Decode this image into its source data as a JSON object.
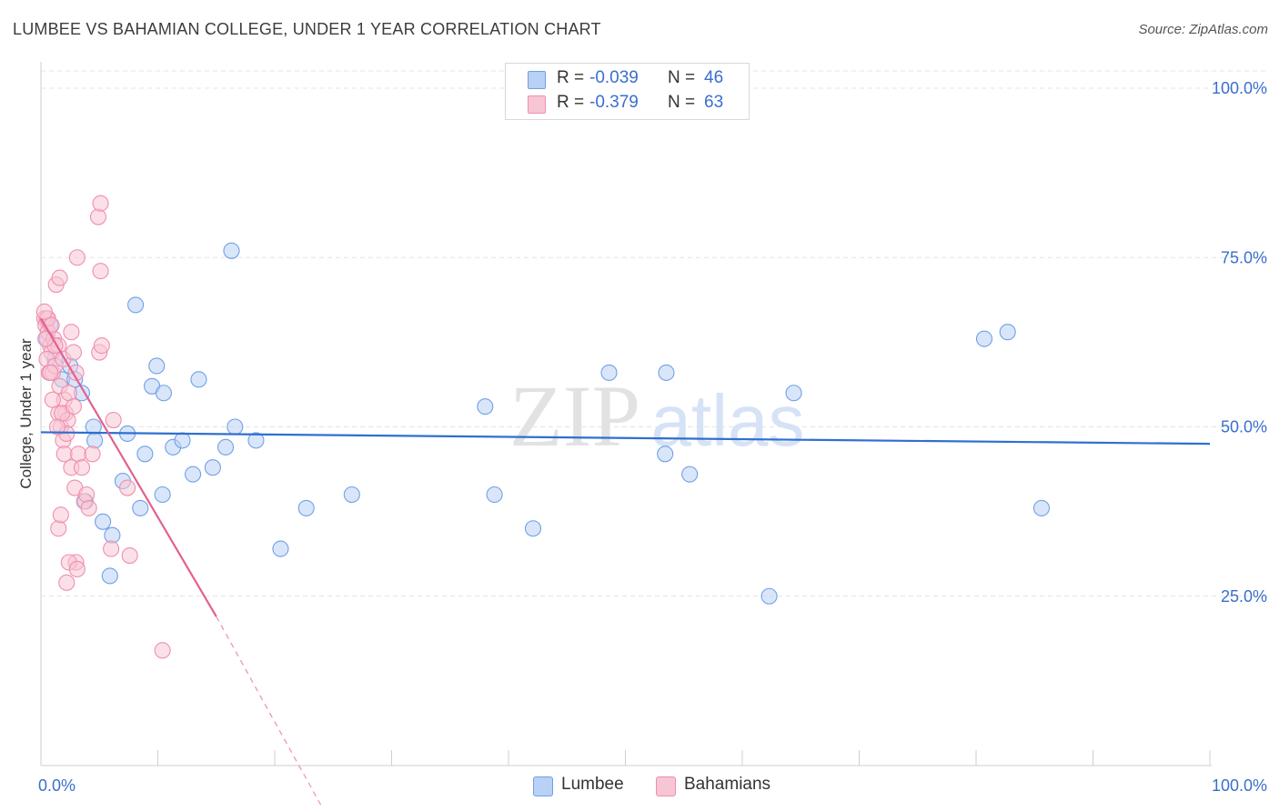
{
  "title": "LUMBEE VS BAHAMIAN COLLEGE, UNDER 1 YEAR CORRELATION CHART",
  "source": "Source: ZipAtlas.com",
  "watermark": {
    "zip": "ZIP",
    "atlas": "atlas"
  },
  "legend_top": [
    {
      "r_label": "R =",
      "r_value": "-0.039",
      "n_label": "N =",
      "n_value": "46",
      "color": "#6fa0e8"
    },
    {
      "r_label": "R =",
      "r_value": "-0.379",
      "n_label": "N =",
      "n_value": "63",
      "color": "#ef8fae"
    }
  ],
  "legend_bottom": [
    "Lumbee",
    "Bahamians"
  ],
  "chart_data": {
    "type": "scatter",
    "title": "LUMBEE VS BAHAMIAN COLLEGE, UNDER 1 YEAR CORRELATION CHART",
    "xlabel": "",
    "ylabel": "College, Under 1 year",
    "xlim": [
      0,
      100
    ],
    "ylim": [
      0,
      105
    ],
    "x_tick_labels": [
      {
        "value": 0,
        "label": "0.0%"
      },
      {
        "value": 100,
        "label": "100.0%"
      }
    ],
    "y_ticks": [
      {
        "value": 25,
        "label": "25.0%"
      },
      {
        "value": 50,
        "label": "50.0%"
      },
      {
        "value": 75,
        "label": "75.0%"
      },
      {
        "value": 100,
        "label": "100.0%"
      }
    ],
    "grid": true,
    "legend_position": "top-center",
    "series": [
      {
        "name": "Lumbee",
        "color": "#6fa0e8",
        "fill": "#b9d1f4",
        "r": -0.039,
        "n": 46,
        "trend": {
          "x": [
            0,
            100
          ],
          "y": [
            49.2,
            47.5
          ],
          "color": "#2f6fd0"
        },
        "points": [
          [
            0.5,
            63
          ],
          [
            0.8,
            65
          ],
          [
            1.2,
            60
          ],
          [
            1.8,
            57
          ],
          [
            2.5,
            59
          ],
          [
            2.9,
            57
          ],
          [
            3.5,
            55
          ],
          [
            4.5,
            50
          ],
          [
            4.6,
            48
          ],
          [
            3.8,
            39
          ],
          [
            5.3,
            36
          ],
          [
            6.1,
            34
          ],
          [
            5.9,
            28
          ],
          [
            7.0,
            42
          ],
          [
            7.4,
            49
          ],
          [
            8.1,
            68
          ],
          [
            8.5,
            38
          ],
          [
            8.9,
            46
          ],
          [
            9.5,
            56
          ],
          [
            9.9,
            59
          ],
          [
            10.5,
            55
          ],
          [
            10.4,
            40
          ],
          [
            11.3,
            47
          ],
          [
            12.1,
            48
          ],
          [
            13.0,
            43
          ],
          [
            13.5,
            57
          ],
          [
            14.7,
            44
          ],
          [
            15.8,
            47
          ],
          [
            16.3,
            76
          ],
          [
            16.6,
            50
          ],
          [
            18.4,
            48
          ],
          [
            20.5,
            32
          ],
          [
            22.7,
            38
          ],
          [
            26.6,
            40
          ],
          [
            38.0,
            53
          ],
          [
            38.8,
            40
          ],
          [
            42.1,
            35
          ],
          [
            48.6,
            58
          ],
          [
            53.5,
            58
          ],
          [
            53.4,
            46
          ],
          [
            55.5,
            43
          ],
          [
            62.3,
            25
          ],
          [
            64.4,
            55
          ],
          [
            80.7,
            63
          ],
          [
            82.7,
            64
          ],
          [
            85.6,
            38
          ]
        ]
      },
      {
        "name": "Bahamians",
        "color": "#ef8fae",
        "fill": "#f7c6d5",
        "r": -0.379,
        "n": 63,
        "trend": {
          "x": [
            0,
            15
          ],
          "y": [
            66.0,
            22.0
          ],
          "dash_to": [
            24,
            -6
          ],
          "color": "#e2618f"
        },
        "points": [
          [
            0.3,
            66
          ],
          [
            0.5,
            66
          ],
          [
            0.4,
            65
          ],
          [
            0.6,
            64
          ],
          [
            0.8,
            62
          ],
          [
            0.9,
            61
          ],
          [
            0.5,
            60
          ],
          [
            0.7,
            58
          ],
          [
            1.0,
            58
          ],
          [
            1.1,
            63
          ],
          [
            1.3,
            71
          ],
          [
            1.6,
            72
          ],
          [
            1.5,
            62
          ],
          [
            1.2,
            59
          ],
          [
            1.6,
            56
          ],
          [
            1.9,
            60
          ],
          [
            2.0,
            54
          ],
          [
            2.1,
            52
          ],
          [
            1.5,
            52
          ],
          [
            1.7,
            50
          ],
          [
            1.9,
            48
          ],
          [
            2.3,
            51
          ],
          [
            2.0,
            46
          ],
          [
            2.4,
            55
          ],
          [
            2.6,
            64
          ],
          [
            2.8,
            61
          ],
          [
            3.0,
            58
          ],
          [
            2.6,
            44
          ],
          [
            2.9,
            41
          ],
          [
            3.2,
            46
          ],
          [
            3.0,
            30
          ],
          [
            2.4,
            30
          ],
          [
            2.2,
            27
          ],
          [
            1.5,
            35
          ],
          [
            1.7,
            37
          ],
          [
            3.1,
            29
          ],
          [
            3.7,
            39
          ],
          [
            3.9,
            40
          ],
          [
            4.4,
            46
          ],
          [
            3.1,
            75
          ],
          [
            5.0,
            61
          ],
          [
            5.2,
            62
          ],
          [
            5.1,
            73
          ],
          [
            4.9,
            81
          ],
          [
            5.1,
            83
          ],
          [
            6.2,
            51
          ],
          [
            6.0,
            32
          ],
          [
            7.4,
            41
          ],
          [
            7.6,
            31
          ],
          [
            10.4,
            17
          ],
          [
            0.8,
            58
          ],
          [
            1.0,
            54
          ],
          [
            0.6,
            66
          ],
          [
            0.9,
            65
          ],
          [
            1.2,
            62
          ],
          [
            2.2,
            49
          ],
          [
            1.8,
            52
          ],
          [
            3.5,
            44
          ],
          [
            4.1,
            38
          ],
          [
            0.4,
            63
          ],
          [
            0.3,
            67
          ],
          [
            2.8,
            53
          ],
          [
            1.4,
            50
          ]
        ]
      }
    ]
  }
}
